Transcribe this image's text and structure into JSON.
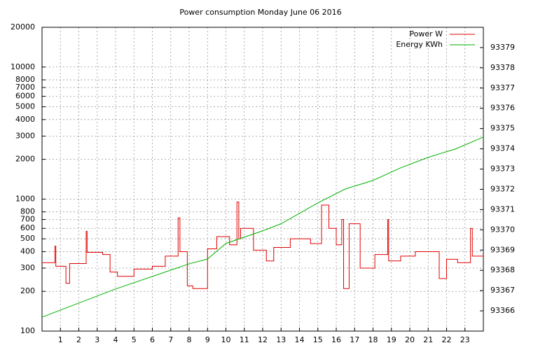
{
  "chart_data": {
    "type": "line",
    "title": "Power consumption Monday June 06 2016",
    "xlim": [
      0,
      24
    ],
    "xticks": [
      1,
      2,
      3,
      4,
      5,
      6,
      7,
      8,
      9,
      10,
      11,
      12,
      13,
      14,
      15,
      16,
      17,
      18,
      19,
      20,
      21,
      22,
      23
    ],
    "ylim": [
      100,
      20000
    ],
    "ylog": true,
    "yticks": [
      100,
      200,
      300,
      400,
      500,
      600,
      700,
      800,
      1000,
      2000,
      3000,
      4000,
      5000,
      6000,
      7000,
      8000,
      10000,
      20000
    ],
    "y2lim": [
      93365,
      93380
    ],
    "y2ticks": [
      93366,
      93367,
      93368,
      93369,
      93370,
      93371,
      93372,
      93373,
      93374,
      93375,
      93376,
      93377,
      93378,
      93379
    ],
    "grid": true,
    "legend": "top-right",
    "series": [
      {
        "name": "Power W",
        "color": "#e00000",
        "axis": "y",
        "x": [
          0,
          0.7,
          0.7,
          0.75,
          0.75,
          1.3,
          1.3,
          1.5,
          1.5,
          2.4,
          2.4,
          2.45,
          2.45,
          3.3,
          3.3,
          3.7,
          3.7,
          4.1,
          4.1,
          5.0,
          5.0,
          6.0,
          6.0,
          6.7,
          6.7,
          7.4,
          7.4,
          7.5,
          7.5,
          7.9,
          7.9,
          8.2,
          8.2,
          9.0,
          9.0,
          9.5,
          9.5,
          10.2,
          10.2,
          10.6,
          10.6,
          10.7,
          10.7,
          10.8,
          10.8,
          11.5,
          11.5,
          12.2,
          12.2,
          12.6,
          12.6,
          13.5,
          13.5,
          14.6,
          14.6,
          15.2,
          15.2,
          15.6,
          15.6,
          16.0,
          16.0,
          16.3,
          16.3,
          16.4,
          16.4,
          16.7,
          16.7,
          17.3,
          17.3,
          18.1,
          18.1,
          18.8,
          18.8,
          18.85,
          18.85,
          19.5,
          19.5,
          20.3,
          20.3,
          21.6,
          21.6,
          22.0,
          22.0,
          22.6,
          22.6,
          23.3,
          23.3,
          23.4,
          23.4,
          24
        ],
        "values": [
          330,
          330,
          440,
          440,
          310,
          310,
          230,
          230,
          325,
          325,
          570,
          570,
          395,
          395,
          380,
          380,
          280,
          280,
          260,
          260,
          295,
          295,
          310,
          310,
          370,
          370,
          720,
          720,
          400,
          400,
          220,
          220,
          210,
          210,
          420,
          420,
          520,
          520,
          450,
          450,
          950,
          950,
          500,
          500,
          600,
          600,
          410,
          410,
          340,
          340,
          430,
          430,
          500,
          500,
          460,
          460,
          900,
          900,
          600,
          600,
          450,
          450,
          700,
          700,
          210,
          210,
          650,
          650,
          300,
          300,
          380,
          380,
          700,
          700,
          340,
          340,
          370,
          370,
          400,
          400,
          250,
          250,
          350,
          350,
          330,
          330,
          600,
          600,
          370,
          370
        ]
      },
      {
        "name": "Energy KWh",
        "color": "#00b000",
        "axis": "y2",
        "x": [
          0,
          4,
          8,
          9,
          10,
          12,
          13,
          15,
          16.5,
          18,
          19.5,
          21,
          22.5,
          24
        ],
        "values": [
          93365.69,
          93367.08,
          93368.32,
          93368.56,
          93369.33,
          93369.95,
          93370.3,
          93371.33,
          93372.02,
          93372.44,
          93373.06,
          93373.58,
          93374.0,
          93374.58
        ]
      }
    ]
  }
}
